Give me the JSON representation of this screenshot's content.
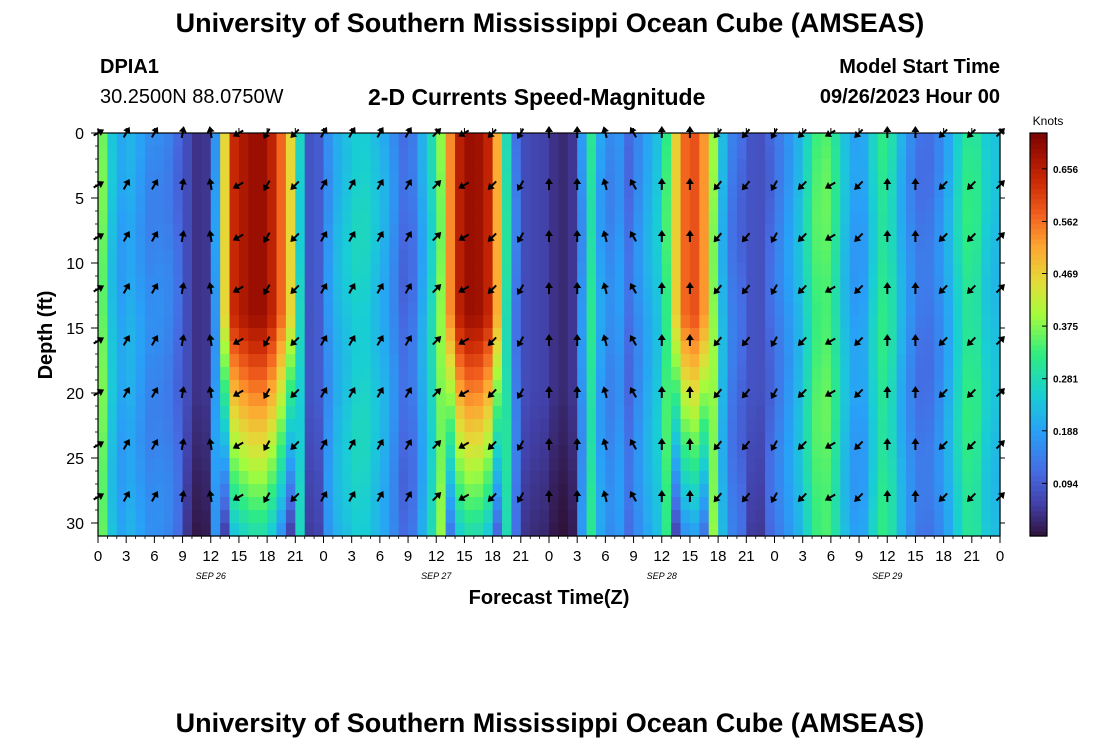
{
  "header": {
    "title": "University of Southern Mississippi Ocean Cube (AMSEAS)",
    "station_id": "DPIA1",
    "coordinates": "30.2500N  88.0750W",
    "subtitle": "2-D Currents Speed-Magnitude",
    "model_start_label": "Model Start Time",
    "model_start_value": "09/26/2023 Hour 00"
  },
  "footer": {
    "title": "University of Southern Mississippi Ocean Cube (AMSEAS)"
  },
  "chart_data": {
    "type": "heatmap",
    "xlabel": "Forecast Time(Z)",
    "ylabel": "Depth (ft)",
    "xlim": [
      0,
      96
    ],
    "ylim": [
      0,
      31
    ],
    "x_tick_labels": [
      "0",
      "3",
      "6",
      "9",
      "12",
      "15",
      "18",
      "21",
      "0",
      "3",
      "6",
      "9",
      "12",
      "15",
      "18",
      "21",
      "0",
      "3",
      "6",
      "9",
      "12",
      "15",
      "18",
      "21",
      "0",
      "3",
      "6",
      "9",
      "12",
      "15",
      "18",
      "21",
      "0"
    ],
    "y_ticks": [
      0,
      5,
      10,
      15,
      20,
      25,
      30
    ],
    "date_labels": [
      {
        "label": "SEP 26",
        "hour": 12
      },
      {
        "label": "SEP 27",
        "hour": 36
      },
      {
        "label": "SEP 28",
        "hour": 60
      },
      {
        "label": "SEP 29",
        "hour": 84
      }
    ],
    "colorbar": {
      "unit": "Knots",
      "min": 0.0,
      "max": 0.72,
      "ticks": [
        0.094,
        0.188,
        0.281,
        0.375,
        0.469,
        0.562,
        0.656
      ],
      "tick_labels": [
        "0.094",
        "0.188",
        "0.281",
        "0.375",
        "0.469",
        "0.562",
        "0.656"
      ]
    },
    "speed_profile_by_hour": [
      {
        "hour": 0,
        "speed": 0.42
      },
      {
        "hour": 1,
        "speed": 0.3
      },
      {
        "hour": 2,
        "speed": 0.17
      },
      {
        "hour": 3,
        "speed": 0.21
      },
      {
        "hour": 4,
        "speed": 0.2
      },
      {
        "hour": 5,
        "speed": 0.16
      },
      {
        "hour": 6,
        "speed": 0.15
      },
      {
        "hour": 7,
        "speed": 0.16
      },
      {
        "hour": 8,
        "speed": 0.13
      },
      {
        "hour": 9,
        "speed": 0.1
      },
      {
        "hour": 10,
        "speed": 0.05
      },
      {
        "hour": 11,
        "speed": 0.03
      },
      {
        "hour": 12,
        "speed": 0.06
      },
      {
        "hour": 13,
        "speed": 0.3
      },
      {
        "hour": 14,
        "speed": 0.62
      },
      {
        "hour": 15,
        "speed": 0.66
      },
      {
        "hour": 16,
        "speed": 0.68
      },
      {
        "hour": 17,
        "speed": 0.7
      },
      {
        "hour": 18,
        "speed": 0.68
      },
      {
        "hour": 19,
        "speed": 0.62
      },
      {
        "hour": 20,
        "speed": 0.52
      },
      {
        "hour": 21,
        "speed": 0.4
      },
      {
        "hour": 22,
        "speed": 0.12
      },
      {
        "hour": 23,
        "speed": 0.05
      },
      {
        "hour": 24,
        "speed": 0.14
      },
      {
        "hour": 25,
        "speed": 0.2
      },
      {
        "hour": 26,
        "speed": 0.23
      },
      {
        "hour": 27,
        "speed": 0.25
      },
      {
        "hour": 28,
        "speed": 0.27
      },
      {
        "hour": 29,
        "speed": 0.25
      },
      {
        "hour": 30,
        "speed": 0.22
      },
      {
        "hour": 31,
        "speed": 0.19
      },
      {
        "hour": 32,
        "speed": 0.13
      },
      {
        "hour": 33,
        "speed": 0.1
      },
      {
        "hour": 34,
        "speed": 0.16
      },
      {
        "hour": 35,
        "speed": 0.24
      },
      {
        "hour": 36,
        "speed": 0.3
      },
      {
        "hour": 37,
        "speed": 0.45
      },
      {
        "hour": 38,
        "speed": 0.63
      },
      {
        "hour": 39,
        "speed": 0.68
      },
      {
        "hour": 40,
        "speed": 0.7
      },
      {
        "hour": 41,
        "speed": 0.67
      },
      {
        "hour": 42,
        "speed": 0.62
      },
      {
        "hour": 43,
        "speed": 0.4
      },
      {
        "hour": 44,
        "speed": 0.18
      },
      {
        "hour": 45,
        "speed": 0.09
      },
      {
        "hour": 46,
        "speed": 0.06
      },
      {
        "hour": 47,
        "speed": 0.07
      },
      {
        "hour": 48,
        "speed": 0.05
      },
      {
        "hour": 49,
        "speed": 0.03
      },
      {
        "hour": 50,
        "speed": 0.03
      },
      {
        "hour": 51,
        "speed": 0.06
      },
      {
        "hour": 52,
        "speed": 0.28
      },
      {
        "hour": 53,
        "speed": 0.32
      },
      {
        "hour": 54,
        "speed": 0.06
      },
      {
        "hour": 55,
        "speed": 0.25
      },
      {
        "hour": 56,
        "speed": 0.1
      },
      {
        "hour": 57,
        "speed": 0.14
      },
      {
        "hour": 58,
        "speed": 0.19
      },
      {
        "hour": 59,
        "speed": 0.22
      },
      {
        "hour": 60,
        "speed": 0.26
      },
      {
        "hour": 61,
        "speed": 0.4
      },
      {
        "hour": 62,
        "speed": 0.54
      },
      {
        "hour": 63,
        "speed": 0.6
      },
      {
        "hour": 64,
        "speed": 0.58
      },
      {
        "hour": 65,
        "speed": 0.48
      },
      {
        "hour": 66,
        "speed": 0.28
      },
      {
        "hour": 67,
        "speed": 0.15
      },
      {
        "hour": 68,
        "speed": 0.12
      },
      {
        "hour": 69,
        "speed": 0.1
      },
      {
        "hour": 70,
        "speed": 0.07
      },
      {
        "hour": 71,
        "speed": 0.09
      },
      {
        "hour": 72,
        "speed": 0.13
      },
      {
        "hour": 73,
        "speed": 0.16
      },
      {
        "hour": 74,
        "speed": 0.2
      },
      {
        "hour": 75,
        "speed": 0.24
      },
      {
        "hour": 76,
        "speed": 0.32
      },
      {
        "hour": 77,
        "speed": 0.36
      },
      {
        "hour": 78,
        "speed": 0.34
      },
      {
        "hour": 79,
        "speed": 0.26
      },
      {
        "hour": 80,
        "speed": 0.2
      },
      {
        "hour": 81,
        "speed": 0.17
      },
      {
        "hour": 82,
        "speed": 0.21
      },
      {
        "hour": 83,
        "speed": 0.3
      },
      {
        "hour": 84,
        "speed": 0.32
      },
      {
        "hour": 85,
        "speed": 0.24
      },
      {
        "hour": 86,
        "speed": 0.18
      },
      {
        "hour": 87,
        "speed": 0.14
      },
      {
        "hour": 88,
        "speed": 0.12
      },
      {
        "hour": 89,
        "speed": 0.14
      },
      {
        "hour": 90,
        "speed": 0.18
      },
      {
        "hour": 91,
        "speed": 0.23
      },
      {
        "hour": 92,
        "speed": 0.3
      },
      {
        "hour": 93,
        "speed": 0.33
      },
      {
        "hour": 94,
        "speed": 0.28
      },
      {
        "hour": 95,
        "speed": 0.22
      },
      {
        "hour": 96,
        "speed": 0.24
      }
    ],
    "vector_depths_ft": [
      0,
      4,
      8,
      12,
      16,
      20,
      24,
      28
    ],
    "vector_direction_by_hour": [
      {
        "hour": 0,
        "angle_deg": 30
      },
      {
        "hour": 3,
        "angle_deg": 60
      },
      {
        "hour": 6,
        "angle_deg": 60
      },
      {
        "hour": 9,
        "angle_deg": 80
      },
      {
        "hour": 12,
        "angle_deg": 100
      },
      {
        "hour": 15,
        "angle_deg": 210
      },
      {
        "hour": 18,
        "angle_deg": 240
      },
      {
        "hour": 21,
        "angle_deg": 225
      },
      {
        "hour": 24,
        "angle_deg": 60
      },
      {
        "hour": 27,
        "angle_deg": 60
      },
      {
        "hour": 30,
        "angle_deg": 60
      },
      {
        "hour": 33,
        "angle_deg": 60
      },
      {
        "hour": 36,
        "angle_deg": 45
      },
      {
        "hour": 39,
        "angle_deg": 210
      },
      {
        "hour": 42,
        "angle_deg": 225
      },
      {
        "hour": 45,
        "angle_deg": 240
      },
      {
        "hour": 48,
        "angle_deg": 90
      },
      {
        "hour": 51,
        "angle_deg": 90
      },
      {
        "hour": 54,
        "angle_deg": 105
      },
      {
        "hour": 57,
        "angle_deg": 120
      },
      {
        "hour": 60,
        "angle_deg": 90
      },
      {
        "hour": 63,
        "angle_deg": 90
      },
      {
        "hour": 66,
        "angle_deg": 230
      },
      {
        "hour": 69,
        "angle_deg": 230
      },
      {
        "hour": 72,
        "angle_deg": 240
      },
      {
        "hour": 75,
        "angle_deg": 225
      },
      {
        "hour": 78,
        "angle_deg": 210
      },
      {
        "hour": 81,
        "angle_deg": 225
      },
      {
        "hour": 84,
        "angle_deg": 90
      },
      {
        "hour": 87,
        "angle_deg": 90
      },
      {
        "hour": 90,
        "angle_deg": 225
      },
      {
        "hour": 93,
        "angle_deg": 225
      },
      {
        "hour": 96,
        "angle_deg": 45
      }
    ]
  }
}
